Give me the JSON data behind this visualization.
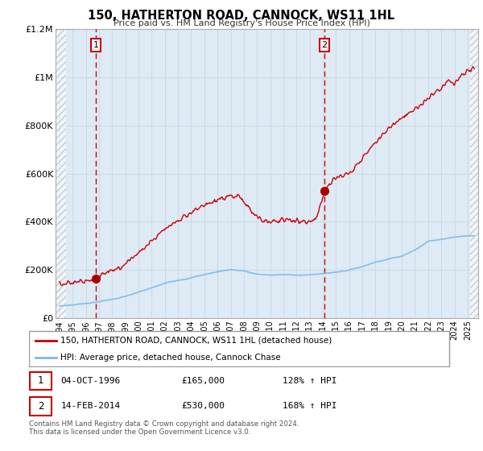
{
  "title": "150, HATHERTON ROAD, CANNOCK, WS11 1HL",
  "subtitle": "Price paid vs. HM Land Registry's House Price Index (HPI)",
  "ylim": [
    0,
    1200000
  ],
  "xlim_start": 1993.7,
  "xlim_end": 2025.8,
  "hatch_left_end": 1994.5,
  "hatch_right_start": 2025.2,
  "yticks": [
    0,
    200000,
    400000,
    600000,
    800000,
    1000000,
    1200000
  ],
  "ytick_labels": [
    "£0",
    "£200K",
    "£400K",
    "£600K",
    "£800K",
    "£1M",
    "£1.2M"
  ],
  "xticks": [
    1994,
    1995,
    1996,
    1997,
    1998,
    1999,
    2000,
    2001,
    2002,
    2003,
    2004,
    2005,
    2006,
    2007,
    2008,
    2009,
    2010,
    2011,
    2012,
    2013,
    2014,
    2015,
    2016,
    2017,
    2018,
    2019,
    2020,
    2021,
    2022,
    2023,
    2024,
    2025
  ],
  "sale1_x": 1996.75,
  "sale1_y": 165000,
  "sale1_label": "1",
  "sale2_x": 2014.12,
  "sale2_y": 530000,
  "sale2_label": "2",
  "legend_line1": "150, HATHERTON ROAD, CANNOCK, WS11 1HL (detached house)",
  "legend_line2": "HPI: Average price, detached house, Cannock Chase",
  "annotation1": "04-OCT-1996",
  "annotation1_price": "£165,000",
  "annotation1_hpi": "128% ↑ HPI",
  "annotation2": "14-FEB-2014",
  "annotation2_price": "£530,000",
  "annotation2_hpi": "168% ↑ HPI",
  "footer": "Contains HM Land Registry data © Crown copyright and database right 2024.\nThis data is licensed under the Open Government Licence v3.0.",
  "hpi_color": "#7ab8e8",
  "sale_line_color": "#cc0000",
  "grid_color": "#c8d8e8",
  "bg_plot_color": "#deeaf4",
  "sale_dot_color": "#aa0000",
  "dashed_line_color": "#cc0000"
}
